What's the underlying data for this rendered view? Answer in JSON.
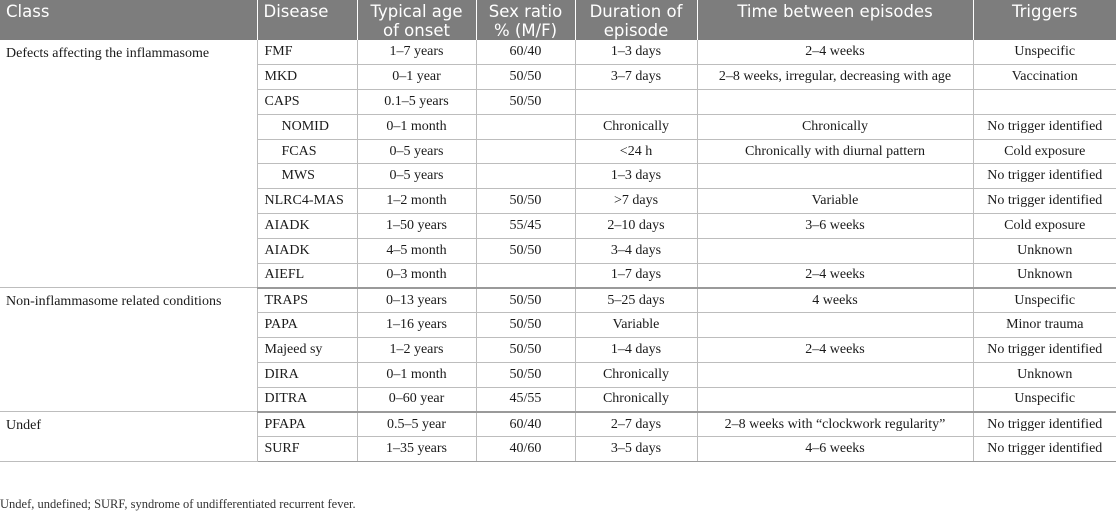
{
  "headers": {
    "class": "Class",
    "disease": "Disease",
    "age": "Typical age of onset",
    "sex": "Sex ratio % (M/F)",
    "duration": "Duration of episode",
    "time": "Time between episodes",
    "triggers": "Triggers"
  },
  "groups": [
    {
      "label": "Defects affecting the inflammasome",
      "rows": [
        {
          "disease": "FMF",
          "age": "1–7 years",
          "sex": "60/40",
          "duration": "1–3 days",
          "time": "2–4 weeks",
          "triggers": "Unspecific"
        },
        {
          "disease": "MKD",
          "age": "0–1 year",
          "sex": "50/50",
          "duration": "3–7 days",
          "time": "2–8 weeks, irregular, decreasing with age",
          "triggers": "Vaccination"
        },
        {
          "disease": "CAPS",
          "age": "0.1–5 years",
          "sex": "50/50",
          "duration": "",
          "time": "",
          "triggers": ""
        },
        {
          "disease": "NOMID",
          "age": "0–1 month",
          "sex": "",
          "duration": "Chronically",
          "time": "Chronically",
          "triggers": "No trigger identified"
        },
        {
          "disease": "FCAS",
          "age": "0–5 years",
          "sex": "",
          "duration": "<24 h",
          "time": "Chronically with diurnal pattern",
          "triggers": "Cold exposure"
        },
        {
          "disease": "MWS",
          "age": "0–5 years",
          "sex": "",
          "duration": "1–3 days",
          "time": "",
          "triggers": "No trigger identified"
        },
        {
          "disease": "NLRC4-MAS",
          "age": "1–2 month",
          "sex": "50/50",
          "duration": ">7 days",
          "time": "Variable",
          "triggers": "No trigger identified"
        },
        {
          "disease": "AIADK",
          "age": "1–50 years",
          "sex": "55/45",
          "duration": "2–10 days",
          "time": "3–6 weeks",
          "triggers": "Cold exposure"
        },
        {
          "disease": "AIADK",
          "age": "4–5 month",
          "sex": "50/50",
          "duration": "3–4 days",
          "time": "",
          "triggers": "Unknown"
        },
        {
          "disease": "AIEFL",
          "age": "0–3 month",
          "sex": "",
          "duration": "1–7 days",
          "time": "2–4 weeks",
          "triggers": "Unknown"
        }
      ]
    },
    {
      "label": "Non-inflammasome related conditions",
      "rows": [
        {
          "disease": "TRAPS",
          "age": "0–13 years",
          "sex": "50/50",
          "duration": "5–25 days",
          "time": "4 weeks",
          "triggers": "Unspecific"
        },
        {
          "disease": "PAPA",
          "age": "1–16 years",
          "sex": "50/50",
          "duration": "Variable",
          "time": "",
          "triggers": "Minor trauma"
        },
        {
          "disease": "Majeed sy",
          "age": "1–2 years",
          "sex": "50/50",
          "duration": "1–4 days",
          "time": "2–4 weeks",
          "triggers": "No trigger identified"
        },
        {
          "disease": "DIRA",
          "age": "0–1 month",
          "sex": "50/50",
          "duration": "Chronically",
          "time": "",
          "triggers": "Unknown"
        },
        {
          "disease": "DITRA",
          "age": "0–60 year",
          "sex": "45/55",
          "duration": "Chronically",
          "time": "",
          "triggers": "Unspecific"
        }
      ]
    },
    {
      "label": "Undef",
      "rows": [
        {
          "disease": "PFAPA",
          "age": "0.5–5 year",
          "sex": "60/40",
          "duration": "2–7 days",
          "time": "2–8 weeks with “clockwork regularity”",
          "triggers": "No trigger identified"
        },
        {
          "disease": "SURF",
          "age": "1–35 years",
          "sex": "40/60",
          "duration": "3–5 days",
          "time": "4–6 weeks",
          "triggers": "No trigger identified"
        }
      ]
    }
  ],
  "footnote": "Undef, undefined; SURF, syndrome of undifferentiated recurrent fever."
}
